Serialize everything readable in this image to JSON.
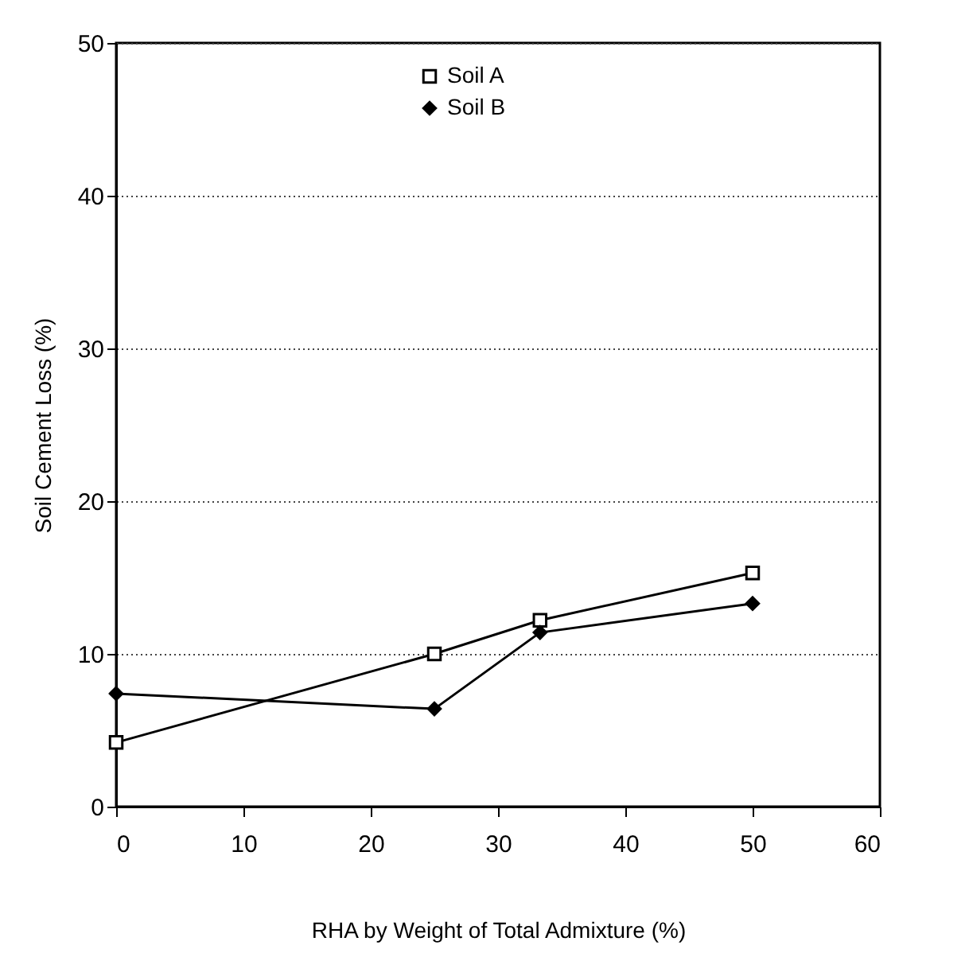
{
  "chart_data": {
    "type": "line",
    "xlabel": "RHA by Weight of Total Admixture (%)",
    "ylabel": "Soil Cement Loss (%)",
    "x": [
      0,
      25,
      33.3,
      50
    ],
    "series": [
      {
        "name": "Soil A",
        "color": "#000000",
        "marker": "square",
        "values": [
          4.2,
          10.0,
          12.2,
          15.3
        ]
      },
      {
        "name": "Soil B",
        "color": "#000000",
        "marker": "diamond",
        "values": [
          7.4,
          6.4,
          11.4,
          13.3
        ]
      }
    ],
    "xlim": [
      0,
      60
    ],
    "xticks": [
      0,
      10,
      20,
      30,
      40,
      50,
      60
    ],
    "ylim": [
      0,
      50
    ],
    "yticks": [
      0,
      10,
      20,
      30,
      40,
      50
    ],
    "grid": "y",
    "legend": "top",
    "line_style": "solid"
  }
}
